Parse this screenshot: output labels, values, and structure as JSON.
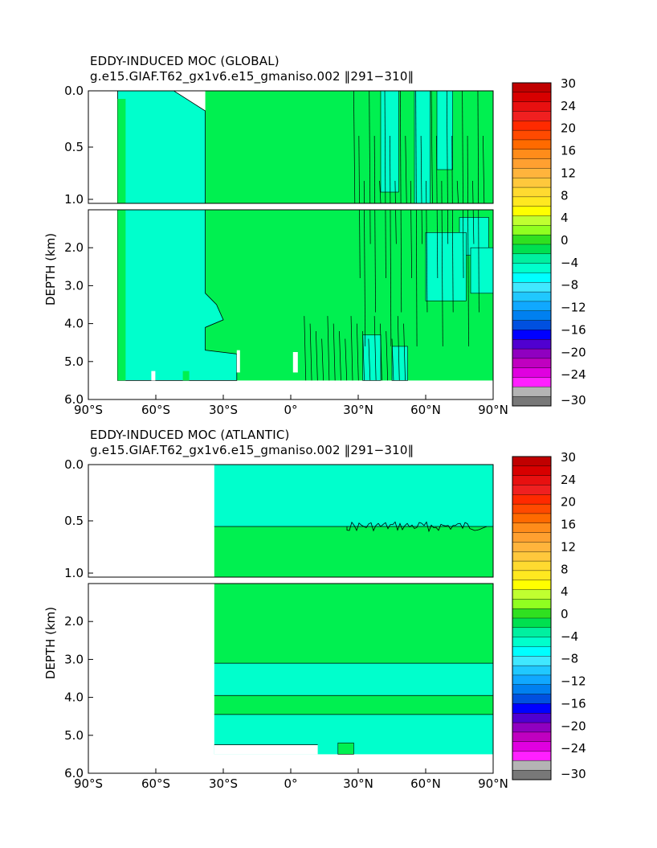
{
  "chart_data": [
    {
      "type": "heatmap",
      "title": "EDDY-INDUCED MOC (GLOBAL)",
      "subtitle": "g.e15.GIAF.T62_gx1v6.e15_gmaniso.002 ‖291−310‖",
      "xlabel": "",
      "ylabel": "DEPTH (km)",
      "xlim": [
        -90,
        90
      ],
      "ylim": [
        6.0,
        0.0
      ],
      "x_ticks": [
        "90°S",
        "60°S",
        "30°S",
        "0°",
        "30°N",
        "60°N",
        "90°N"
      ],
      "y_ticks": [
        "0.0",
        "0.5",
        "1.0",
        "2.0",
        "3.0",
        "4.0",
        "5.0",
        "6.0"
      ],
      "dominant_regions": [
        {
          "description": "southern ocean negative cell",
          "lat_range": [
            -77,
            -38
          ],
          "depth_range": [
            0,
            5.5
          ],
          "value_class": -2
        },
        {
          "description": "positive cell",
          "lat_range": [
            -38,
            90
          ],
          "depth_range": [
            0,
            5.5
          ],
          "value_class": 2
        }
      ]
    },
    {
      "type": "heatmap",
      "title": "EDDY-INDUCED MOC (ATLANTIC)",
      "subtitle": "g.e15.GIAF.T62_gx1v6.e15_gmaniso.002 ‖291−310‖",
      "xlabel": "",
      "ylabel": "DEPTH (km)",
      "xlim": [
        -90,
        90
      ],
      "ylim": [
        6.0,
        0.0
      ],
      "x_ticks": [
        "90°S",
        "60°S",
        "30°S",
        "0°",
        "30°N",
        "60°N",
        "90°N"
      ],
      "y_ticks": [
        "0.0",
        "0.5",
        "1.0",
        "2.0",
        "3.0",
        "4.0",
        "5.0",
        "6.0"
      ],
      "bands": [
        {
          "depth_range": [
            0.0,
            0.55
          ],
          "value_class": -2
        },
        {
          "depth_range": [
            0.55,
            3.1
          ],
          "value_class": 2
        },
        {
          "depth_range": [
            3.1,
            3.95
          ],
          "value_class": -2
        },
        {
          "depth_range": [
            3.95,
            4.45
          ],
          "value_class": 2
        },
        {
          "depth_range": [
            4.45,
            5.5
          ],
          "value_class": -2
        }
      ],
      "lat_start": -34
    }
  ],
  "colorbar": {
    "labels": [
      "30",
      "24",
      "20",
      "16",
      "12",
      "8",
      "4",
      "0",
      "−4",
      "−8",
      "−12",
      "−16",
      "−20",
      "−24",
      "−30"
    ],
    "colors": [
      "#c00000",
      "#d80000",
      "#e81010",
      "#f02020",
      "#ff2a00",
      "#ff4a00",
      "#ff6a00",
      "#ff8c1a",
      "#ffa030",
      "#ffb43c",
      "#ffc83c",
      "#ffda30",
      "#ffe820",
      "#ffff00",
      "#c0ff30",
      "#90ff20",
      "#30e020",
      "#00e050",
      "#00f0a0",
      "#00ffcc",
      "#00ffff",
      "#40e8ff",
      "#20c8ff",
      "#10a8ff",
      "#0080f0",
      "#0050e0",
      "#0000ff",
      "#5000d0",
      "#9000c0",
      "#c000c0",
      "#e000e0",
      "#ff20ff",
      "#b4b4b4",
      "#787878"
    ],
    "fill_colors": {
      "positive": "#00f050",
      "negative": "#00ffcc"
    }
  }
}
